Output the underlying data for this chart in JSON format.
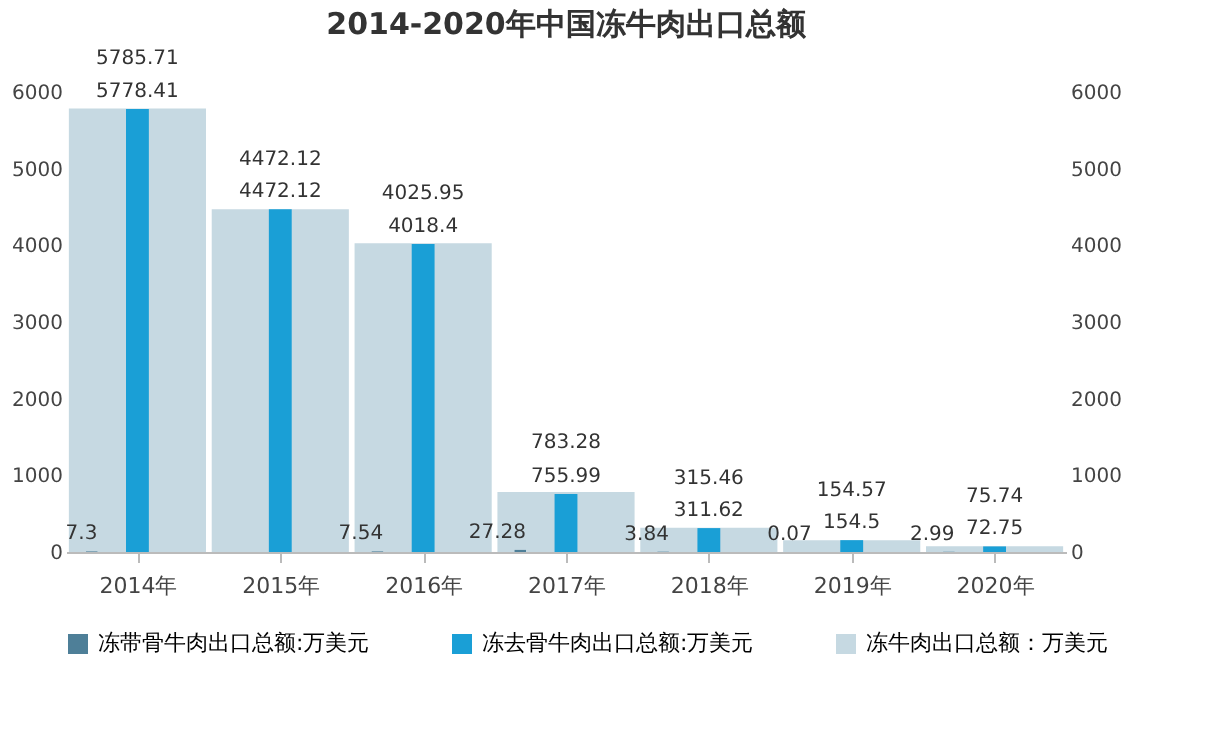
{
  "chart_data": {
    "type": "bar",
    "title": "2014-2020年中国冻牛肉出口总额",
    "categories": [
      "2014年",
      "2015年",
      "2016年",
      "2017年",
      "2018年",
      "2019年",
      "2020年"
    ],
    "series": [
      {
        "name": "冻带骨牛肉出口总额:万美元",
        "color": "#4e7f98",
        "values": [
          7.3,
          0,
          7.54,
          27.28,
          3.84,
          0.07,
          2.99
        ],
        "value_labels": [
          "7.3",
          null,
          "7.54",
          "27.28",
          "3.84",
          "0.07",
          "2.99"
        ]
      },
      {
        "name": "冻去骨牛肉出口总额:万美元",
        "color": "#1a9fd6",
        "values": [
          5778.41,
          4472.12,
          4018.4,
          755.99,
          311.62,
          154.5,
          72.75
        ],
        "value_labels": [
          "5778.41",
          "4472.12",
          "4018.4",
          "755.99",
          "311.62",
          "154.5",
          "72.75"
        ]
      },
      {
        "name": "冻牛肉出口总额：万美元",
        "color": "#c6d9e2",
        "axis": "y2",
        "values": [
          5785.71,
          4472.12,
          4025.95,
          783.28,
          315.46,
          154.57,
          75.74
        ],
        "value_labels": [
          "5785.71",
          "4472.12",
          "4025.95",
          "783.28",
          "315.46",
          "154.57",
          "75.74"
        ]
      }
    ],
    "ylim": [
      0,
      6000
    ],
    "yticks": [
      0,
      1000,
      2000,
      3000,
      4000,
      5000,
      6000
    ],
    "y2lim": [
      0,
      6000
    ],
    "y2ticks": [
      0,
      1000,
      2000,
      3000,
      4000,
      5000,
      6000
    ],
    "grid": false,
    "legend": "bottom"
  }
}
